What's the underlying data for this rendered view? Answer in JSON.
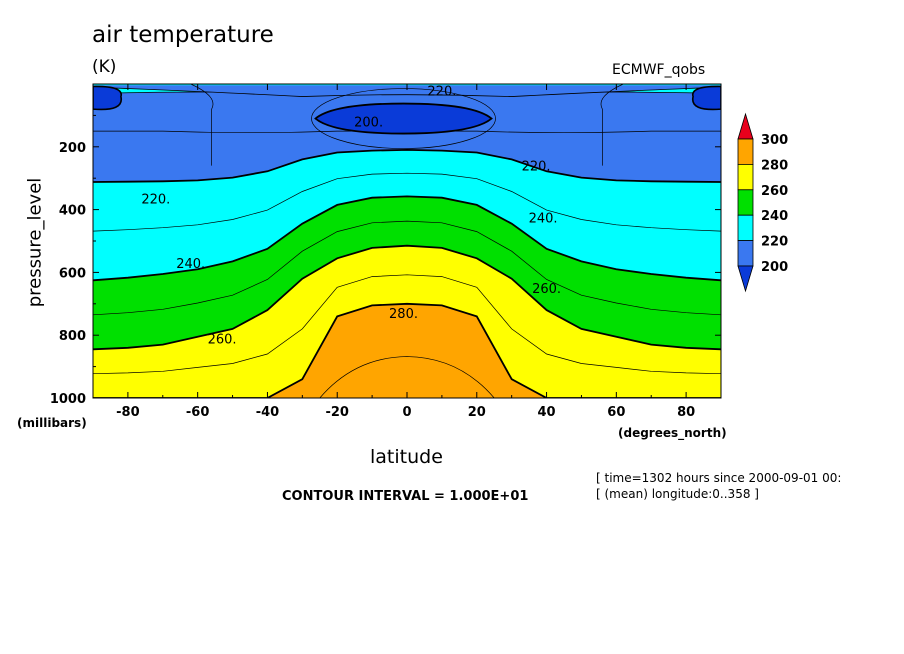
{
  "chart_data": {
    "type": "heatmap",
    "title": "air temperature",
    "units": "(K)",
    "source": "ECMWF_qobs",
    "xlabel": "latitude",
    "xlabel_units": "(degrees_north)",
    "ylabel": "pressure_level",
    "ylabel_units": "(millibars)",
    "xlim": [
      -90,
      90
    ],
    "ylim": [
      1000,
      0
    ],
    "x_ticks": [
      -80,
      -60,
      -40,
      -20,
      0,
      20,
      40,
      60,
      80
    ],
    "y_ticks": [
      200,
      400,
      600,
      800,
      1000
    ],
    "contour_interval_text": "CONTOUR INTERVAL = 1.000E+01",
    "meta_line1": "[ time=1302 hours since 2000-09-01 00:",
    "meta_line2": "[ (mean) longitude:0..358 ]",
    "colorbar": {
      "levels": [
        200,
        220,
        240,
        260,
        280,
        300
      ],
      "labels": [
        "200",
        "220",
        "240",
        "260",
        "280",
        "300"
      ],
      "colors": [
        "#0a3bd8",
        "#3a78f0",
        "#00ffff",
        "#00e000",
        "#ffff00",
        "#ffa500",
        "#e8001c"
      ]
    },
    "contour_labels": [
      {
        "text": "220.",
        "lat": 10,
        "p": 20
      },
      {
        "text": "200.",
        "lat": -11,
        "p": 120
      },
      {
        "text": "220.",
        "lat": 37,
        "p": 260
      },
      {
        "text": "220.",
        "lat": -72,
        "p": 365
      },
      {
        "text": "240.",
        "lat": 39,
        "p": 425
      },
      {
        "text": "240.",
        "lat": -62,
        "p": 570
      },
      {
        "text": "260.",
        "lat": 40,
        "p": 650
      },
      {
        "text": "280.",
        "lat": -1,
        "p": 730
      },
      {
        "text": "260.",
        "lat": -53,
        "p": 810
      }
    ],
    "profiles": {
      "lat": [
        -90,
        -80,
        -70,
        -60,
        -50,
        -40,
        -30,
        -20,
        -10,
        0,
        10,
        20,
        30,
        40,
        50,
        60,
        70,
        80,
        90
      ],
      "bands": [
        {
          "level": 220,
          "p": [
            312,
            311,
            310,
            307,
            298,
            278,
            240,
            218,
            212,
            210,
            212,
            218,
            240,
            278,
            298,
            307,
            310,
            311,
            312
          ]
        },
        {
          "level": 240,
          "p": [
            625,
            617,
            605,
            590,
            565,
            525,
            445,
            385,
            362,
            358,
            362,
            385,
            445,
            525,
            565,
            590,
            605,
            617,
            625
          ]
        },
        {
          "level": 260,
          "p": [
            845,
            840,
            830,
            805,
            780,
            720,
            620,
            555,
            522,
            515,
            522,
            555,
            620,
            720,
            780,
            805,
            830,
            840,
            845
          ]
        },
        {
          "level": 280,
          "p": [
            1000,
            1000,
            1000,
            1000,
            1000,
            1000,
            940,
            740,
            705,
            700,
            705,
            740,
            940,
            1000,
            1000,
            1000,
            1000,
            1000,
            1000
          ]
        }
      ]
    }
  }
}
